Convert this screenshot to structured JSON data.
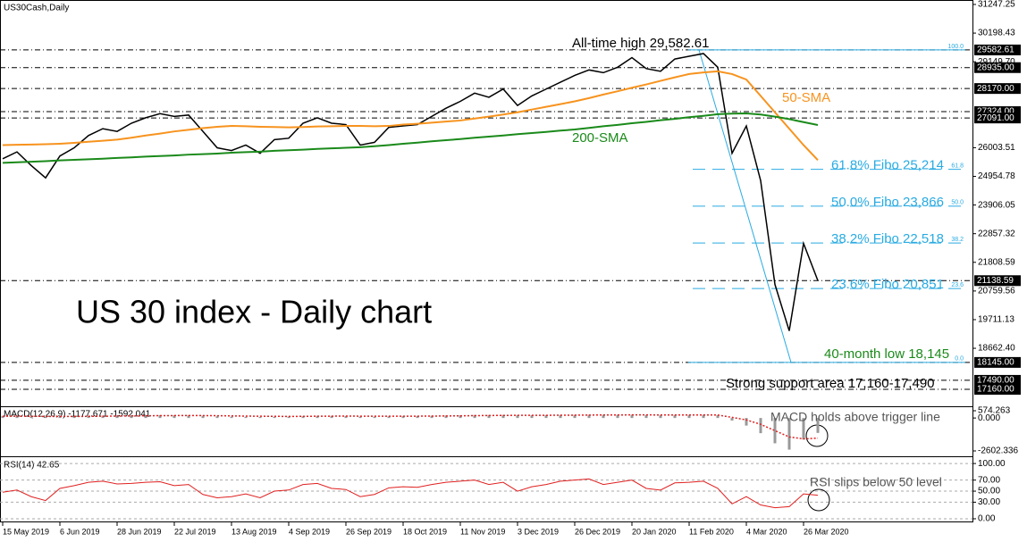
{
  "chart_data": [
    {
      "type": "line",
      "title": "US30Cash,Daily",
      "subtitle": "US 30 index - Daily chart",
      "ylim": [
        16540,
        31410
      ],
      "yticks": [
        31247.25,
        30198.43,
        {
          "value": 29149.7,
          "label": "29149.70"
        },
        26003.51,
        24954.78,
        23906.05,
        22857.32,
        21808.59,
        20759.56,
        19711.13,
        {
          "value": 18662.4,
          "label": "18662.40"
        }
      ],
      "levels": [
        29582.61,
        {
          "value": 28935,
          "label": "28935.00"
        },
        {
          "value": 28170,
          "label": "28170.00"
        },
        {
          "value": 27324,
          "label": "27324.00"
        },
        {
          "value": 27091,
          "label": "27091.00"
        },
        21138.59,
        {
          "value": 18145,
          "label": "18145.00"
        },
        {
          "value": 17490,
          "label": "17490.00"
        },
        {
          "value": 17160,
          "label": "17160.00"
        }
      ],
      "fibo": [
        {
          "value": 29582.61,
          "ratio": {
            "value": 100,
            "label": "100.0"
          }
        },
        {
          "name": "61.8% Fibo 25,214",
          "value": 25214,
          "ratio": 61.8
        },
        {
          "name": "50.0% Fibo 23,866",
          "value": 23866,
          "ratio": {
            "value": 50,
            "label": "50.0"
          }
        },
        {
          "name": "38.2% Fibo 22,518",
          "value": 22518,
          "ratio": 38.2
        },
        {
          "name": "23.6% Fibo 20,851",
          "value": 20851,
          "ratio": 23.6
        },
        {
          "value": 18145,
          "ratio": {
            "value": 0,
            "label": "0.0"
          }
        }
      ],
      "annotations": [
        "All-time high 29,582.61",
        "40-month low 18,145",
        "Strong support area 17,160-17,490"
      ],
      "series": [
        {
          "color": "#000000",
          "values": [
            25600,
            25850,
            25350,
            24900,
            25700,
            26000,
            26450,
            26700,
            26600,
            26900,
            27100,
            27250,
            27150,
            27200,
            26600,
            26000,
            25900,
            26100,
            25800,
            26300,
            26350,
            26900,
            27100,
            26900,
            26850,
            26100,
            26200,
            26750,
            26800,
            26850,
            27150,
            27450,
            27700,
            28000,
            27850,
            28150,
            27550,
            27900,
            28150,
            28400,
            28650,
            28850,
            28750,
            28950,
            29300,
            28900,
            28800,
            29250,
            29350,
            29450,
            28950,
            25800,
            26800,
            24800,
            21000,
            19300,
            22500,
            21139
          ]
        },
        {
          "name": "50-SMA",
          "color": "#f7931e",
          "values": [
            26100,
            26110,
            26120,
            26130,
            26150,
            26180,
            26220,
            26260,
            26300,
            26370,
            26450,
            26520,
            26600,
            26660,
            26720,
            26770,
            26800,
            26790,
            26770,
            26760,
            26750,
            26760,
            26780,
            26790,
            26800,
            26800,
            26790,
            26800,
            26850,
            26880,
            26920,
            26960,
            27000,
            27070,
            27140,
            27220,
            27300,
            27400,
            27500,
            27600,
            27700,
            27820,
            27950,
            28070,
            28200,
            28320,
            28450,
            28580,
            28700,
            28760,
            28800,
            28700,
            28500,
            27900,
            27300,
            26700,
            26100,
            25550
          ]
        },
        {
          "name": "200-SMA",
          "color": "#1a8a1a",
          "values": [
            25450,
            25470,
            25490,
            25510,
            25540,
            25560,
            25580,
            25600,
            25630,
            25650,
            25680,
            25700,
            25720,
            25750,
            25770,
            25790,
            25820,
            25840,
            25860,
            25890,
            25910,
            25930,
            25960,
            25980,
            26000,
            26020,
            26060,
            26100,
            26150,
            26190,
            26240,
            26280,
            26320,
            26370,
            26410,
            26450,
            26500,
            26540,
            26580,
            26630,
            26670,
            26730,
            26790,
            26840,
            26900,
            26950,
            27010,
            27060,
            27120,
            27170,
            27230,
            27250,
            27260,
            27220,
            27140,
            27050,
            26940,
            26835
          ]
        }
      ]
    },
    {
      "type": "macd",
      "title": "MACD(12,26,9) -1177.671 -1592.041",
      "annotation": "MACD holds above trigger line",
      "ylim": [
        -3026,
        856
      ],
      "yticks": [
        574.263,
        {
          "value": 0,
          "label": "0.000"
        },
        -2602.336
      ],
      "series": [
        {
          "color": "#999999",
          "values": [
            150,
            140,
            120,
            90,
            110,
            130,
            160,
            190,
            200,
            210,
            220,
            230,
            220,
            215,
            180,
            140,
            110,
            100,
            90,
            100,
            110,
            140,
            170,
            170,
            160,
            120,
            110,
            130,
            150,
            160,
            180,
            200,
            220,
            240,
            240,
            250,
            220,
            220,
            230,
            240,
            250,
            260,
            250,
            250,
            260,
            240,
            220,
            230,
            240,
            250,
            220,
            -200,
            -600,
            -1200,
            -2000,
            -2500,
            -1700,
            -1177.671
          ]
        },
        {
          "color": "#e02020",
          "values": [
            140,
            140,
            135,
            125,
            120,
            122,
            130,
            140,
            155,
            165,
            175,
            185,
            190,
            195,
            190,
            180,
            165,
            150,
            140,
            130,
            125,
            130,
            140,
            145,
            150,
            145,
            140,
            138,
            140,
            145,
            150,
            160,
            170,
            185,
            195,
            205,
            210,
            212,
            215,
            220,
            225,
            232,
            238,
            240,
            245,
            245,
            240,
            238,
            238,
            240,
            235,
            50,
            -150,
            -500,
            -1000,
            -1500,
            -1650,
            -1592.041
          ]
        }
      ]
    },
    {
      "type": "rsi",
      "title": "RSI(14) 42.65",
      "annotation": "RSI slips below 50 level",
      "ylim": [
        -6.5,
        111.5
      ],
      "yticks": [
        {
          "value": 100,
          "label": "100.00"
        },
        {
          "value": 70,
          "label": "70.00"
        },
        {
          "value": 50,
          "label": "50.00"
        },
        {
          "value": 30,
          "label": "30.00"
        },
        {
          "value": 0,
          "label": "0.00"
        }
      ],
      "categories": [
        "15 May 2019",
        null,
        null,
        null,
        "6 Jun 2019",
        null,
        null,
        null,
        "28 Jun 2019",
        null,
        null,
        null,
        "22 Jul 2019",
        null,
        null,
        null,
        "13 Aug 2019",
        null,
        null,
        null,
        "4 Sep 2019",
        null,
        null,
        null,
        "26 Sep 2019",
        null,
        null,
        null,
        "18 Oct 2019",
        null,
        null,
        null,
        "11 Nov 2019",
        null,
        null,
        null,
        "3 Dec 2019",
        null,
        null,
        null,
        "26 Dec 2019",
        null,
        null,
        null,
        "20 Jan 2020",
        null,
        null,
        null,
        "11 Feb 2020",
        null,
        null,
        null,
        "4 Mar 2020",
        null,
        null,
        null,
        "26 Mar 2020",
        null
      ],
      "series": [
        {
          "color": "#e02020",
          "values": [
            48,
            52,
            40,
            33,
            55,
            60,
            66,
            68,
            63,
            64,
            66,
            67,
            60,
            62,
            44,
            38,
            40,
            45,
            38,
            50,
            52,
            62,
            64,
            55,
            53,
            40,
            44,
            56,
            58,
            57,
            62,
            66,
            68,
            70,
            62,
            66,
            50,
            58,
            62,
            68,
            70,
            72,
            62,
            66,
            70,
            55,
            52,
            65,
            66,
            68,
            55,
            27,
            40,
            25,
            20,
            22,
            45,
            42.65
          ]
        }
      ]
    }
  ]
}
